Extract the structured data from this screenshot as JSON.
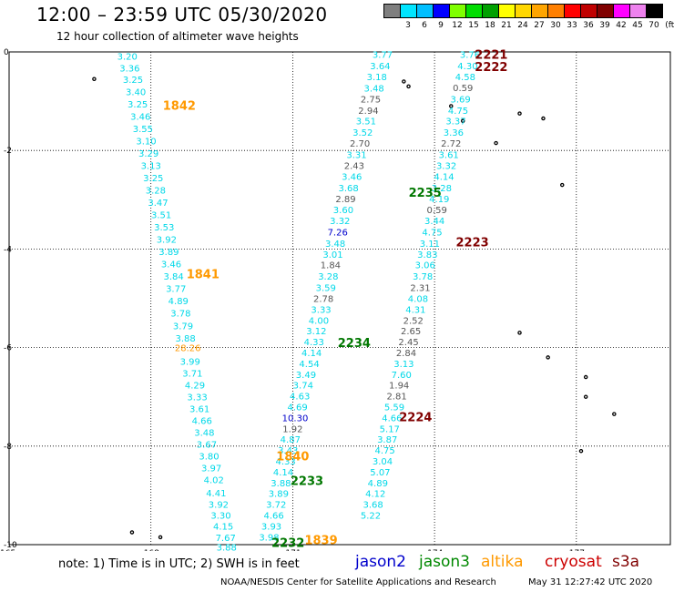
{
  "header": {
    "title": "12:00 – 23:59 UTC 05/30/2020",
    "subtitle": "12 hour collection of altimeter wave heights"
  },
  "color_scale": {
    "unit_label": "(ft)",
    "bins": [
      {
        "label": "",
        "color": "#7f7f7f"
      },
      {
        "label": "3",
        "color": "#00e5ff"
      },
      {
        "label": "6",
        "color": "#00bfff"
      },
      {
        "label": "9",
        "color": "#0000ff"
      },
      {
        "label": "12",
        "color": "#7fff00"
      },
      {
        "label": "15",
        "color": "#00dd00"
      },
      {
        "label": "18",
        "color": "#00a000"
      },
      {
        "label": "21",
        "color": "#ffff00"
      },
      {
        "label": "24",
        "color": "#ffd700"
      },
      {
        "label": "27",
        "color": "#ffa500"
      },
      {
        "label": "30",
        "color": "#ff7f00"
      },
      {
        "label": "33",
        "color": "#ff0000"
      },
      {
        "label": "36",
        "color": "#c00000"
      },
      {
        "label": "39",
        "color": "#800000"
      },
      {
        "label": "42",
        "color": "#ff00ff"
      },
      {
        "label": "45",
        "color": "#ee82ee"
      },
      {
        "label": "70",
        "color": "#000000"
      }
    ]
  },
  "axes": {
    "lat_ticks": [
      "0",
      "-2",
      "-4",
      "-6",
      "-8",
      "-10"
    ],
    "lon_ticks": [
      "165",
      "168",
      "171",
      "174",
      "177"
    ]
  },
  "chart_data": {
    "type": "scatter",
    "xlim": [
      165,
      178
    ],
    "ylim": [
      -10,
      0
    ],
    "grid": true,
    "colors": {
      "cyan": "#00d8e8",
      "gray": "#555555",
      "blue": "#0000cc",
      "orange": "#ff9900",
      "green": "#007700",
      "maroon": "#800000"
    },
    "pass_labels": [
      {
        "text": "1842",
        "lon": 168.6,
        "lat": -1.08,
        "color": "orange"
      },
      {
        "text": "1841",
        "lon": 169.1,
        "lat": -4.5,
        "color": "orange"
      },
      {
        "text": "1840",
        "lon": 171.0,
        "lat": -8.2,
        "color": "orange"
      },
      {
        "text": "1839",
        "lon": 171.6,
        "lat": -9.9,
        "color": "orange"
      },
      {
        "text": "2235",
        "lon": 173.8,
        "lat": -2.85,
        "color": "green"
      },
      {
        "text": "2234",
        "lon": 172.3,
        "lat": -5.9,
        "color": "green"
      },
      {
        "text": "2233",
        "lon": 171.3,
        "lat": -8.7,
        "color": "green"
      },
      {
        "text": "2232",
        "lon": 170.9,
        "lat": -9.95,
        "color": "green"
      },
      {
        "text": "2221",
        "lon": 175.2,
        "lat": -0.05,
        "color": "maroon"
      },
      {
        "text": "2222",
        "lon": 175.2,
        "lat": -0.3,
        "color": "maroon"
      },
      {
        "text": "2223",
        "lon": 174.8,
        "lat": -3.85,
        "color": "maroon"
      },
      {
        "text": "2224",
        "lon": 173.6,
        "lat": -7.4,
        "color": "maroon"
      }
    ],
    "tracks": [
      {
        "name": "1842 – 1839",
        "color": "cyan",
        "points": [
          [
            167.5,
            -0.08,
            "3.20"
          ],
          [
            167.55,
            -0.32,
            "3.36"
          ],
          [
            167.62,
            -0.55,
            "3.25"
          ],
          [
            167.68,
            -0.8,
            "3.40"
          ],
          [
            167.72,
            -1.05,
            "3.25"
          ],
          [
            167.78,
            -1.3,
            "3.46"
          ],
          [
            167.83,
            -1.55,
            "3.55"
          ],
          [
            167.9,
            -1.8,
            "3.10"
          ],
          [
            167.95,
            -2.05,
            "3.29"
          ],
          [
            168.0,
            -2.3,
            "3.13"
          ],
          [
            168.05,
            -2.55,
            "3.25"
          ],
          [
            168.1,
            -2.8,
            "3.28"
          ],
          [
            168.15,
            -3.05,
            "3.47"
          ],
          [
            168.22,
            -3.3,
            "3.51"
          ],
          [
            168.28,
            -3.55,
            "3.53"
          ],
          [
            168.33,
            -3.8,
            "3.92"
          ],
          [
            168.38,
            -4.05,
            "3.89"
          ],
          [
            168.43,
            -4.3,
            "3.46"
          ],
          [
            168.48,
            -4.55,
            "3.84"
          ],
          [
            168.53,
            -4.8,
            "3.77"
          ],
          [
            168.58,
            -5.05,
            "4.89"
          ],
          [
            168.63,
            -5.3,
            "3.78"
          ],
          [
            168.68,
            -5.55,
            "3.79"
          ],
          [
            168.73,
            -5.8,
            "3.88"
          ],
          [
            168.78,
            -6.0,
            "28.26",
            "orange"
          ],
          [
            168.83,
            -6.28,
            "3.99"
          ],
          [
            168.88,
            -6.52,
            "3.71"
          ],
          [
            168.93,
            -6.76,
            "4.29"
          ],
          [
            168.98,
            -7.0,
            "3.33"
          ],
          [
            169.03,
            -7.24,
            "3.61"
          ],
          [
            169.08,
            -7.48,
            "4.66"
          ],
          [
            169.13,
            -7.72,
            "3.48"
          ],
          [
            169.18,
            -7.96,
            "3.67"
          ],
          [
            169.23,
            -8.2,
            "3.80"
          ],
          [
            169.28,
            -8.44,
            "3.97"
          ],
          [
            169.33,
            -8.68,
            "4.02"
          ],
          [
            169.38,
            -8.95,
            "4.41"
          ],
          [
            169.43,
            -9.18,
            "3.92"
          ],
          [
            169.48,
            -9.4,
            "3.30"
          ],
          [
            169.53,
            -9.62,
            "4.15"
          ],
          [
            169.58,
            -9.85,
            "7.67"
          ],
          [
            169.6,
            -10.05,
            "3.88"
          ]
        ]
      },
      {
        "name": "2235 – 2232",
        "color": "cyan",
        "points": [
          [
            172.9,
            -0.05,
            "3.77"
          ],
          [
            172.85,
            -0.28,
            "3.64"
          ],
          [
            172.78,
            -0.5,
            "3.18"
          ],
          [
            172.72,
            -0.73,
            "3.48"
          ],
          [
            172.65,
            -0.95,
            "2.75",
            "gray"
          ],
          [
            172.6,
            -1.18,
            "2.94",
            "gray"
          ],
          [
            172.55,
            -1.4,
            "3.51"
          ],
          [
            172.48,
            -1.63,
            "3.52"
          ],
          [
            172.42,
            -1.85,
            "2.70",
            "gray"
          ],
          [
            172.35,
            -2.08,
            "3.31"
          ],
          [
            172.3,
            -2.3,
            "2.43",
            "gray"
          ],
          [
            172.25,
            -2.52,
            "3.46"
          ],
          [
            172.18,
            -2.75,
            "3.68"
          ],
          [
            172.12,
            -2.98,
            "2.89",
            "gray"
          ],
          [
            172.07,
            -3.2,
            "3.60"
          ],
          [
            172.0,
            -3.42,
            "3.32"
          ],
          [
            171.95,
            -3.65,
            "7.26",
            "blue"
          ],
          [
            171.9,
            -3.88,
            "3.48"
          ],
          [
            171.85,
            -4.1,
            "3.01"
          ],
          [
            171.8,
            -4.32,
            "1.84",
            "gray"
          ],
          [
            171.75,
            -4.55,
            "3.28"
          ],
          [
            171.7,
            -4.78,
            "3.59"
          ],
          [
            171.65,
            -5.0,
            "2.78",
            "gray"
          ],
          [
            171.6,
            -5.22,
            "3.33"
          ],
          [
            171.55,
            -5.44,
            "4.00"
          ],
          [
            171.5,
            -5.66,
            "3.12"
          ],
          [
            171.45,
            -5.88,
            "4.33"
          ],
          [
            171.4,
            -6.1,
            "4.14"
          ],
          [
            171.35,
            -6.32,
            "4.54"
          ],
          [
            171.28,
            -6.54,
            "3.49"
          ],
          [
            171.22,
            -6.76,
            "3.74"
          ],
          [
            171.15,
            -6.98,
            "4.63"
          ],
          [
            171.1,
            -7.2,
            "4.69"
          ],
          [
            171.05,
            -7.42,
            "10.30",
            "blue"
          ],
          [
            171.0,
            -7.64,
            "1.92",
            "gray"
          ],
          [
            170.95,
            -7.86,
            "4.87"
          ],
          [
            170.9,
            -8.08,
            "3.43"
          ],
          [
            170.85,
            -8.3,
            "4.33"
          ],
          [
            170.8,
            -8.52,
            "4.14"
          ],
          [
            170.75,
            -8.74,
            "3.88"
          ],
          [
            170.7,
            -8.96,
            "3.89"
          ],
          [
            170.65,
            -9.18,
            "3.72"
          ],
          [
            170.6,
            -9.4,
            "4.66"
          ],
          [
            170.55,
            -9.62,
            "3.93"
          ],
          [
            170.5,
            -9.84,
            "3.98"
          ]
        ]
      },
      {
        "name": "2221 – 2224",
        "color": "cyan",
        "points": [
          [
            174.75,
            -0.05,
            "3.76"
          ],
          [
            174.7,
            -0.28,
            "4.30"
          ],
          [
            174.65,
            -0.5,
            "4.58"
          ],
          [
            174.6,
            -0.72,
            "0.59",
            "gray"
          ],
          [
            174.55,
            -0.95,
            "3.69"
          ],
          [
            174.5,
            -1.18,
            "4.75"
          ],
          [
            174.45,
            -1.4,
            "3.37"
          ],
          [
            174.4,
            -1.63,
            "3.36"
          ],
          [
            174.35,
            -1.85,
            "2.72",
            "gray"
          ],
          [
            174.3,
            -2.08,
            "3.61"
          ],
          [
            174.25,
            -2.3,
            "3.32"
          ],
          [
            174.2,
            -2.52,
            "4.14"
          ],
          [
            174.15,
            -2.75,
            "3.28"
          ],
          [
            174.1,
            -2.98,
            "4.19"
          ],
          [
            174.05,
            -3.2,
            "0.59",
            "gray"
          ],
          [
            174.0,
            -3.42,
            "3.44"
          ],
          [
            173.95,
            -3.65,
            "4.75"
          ],
          [
            173.9,
            -3.88,
            "3.11"
          ],
          [
            173.85,
            -4.1,
            "3.83"
          ],
          [
            173.8,
            -4.32,
            "3.06"
          ],
          [
            173.75,
            -4.55,
            "3.78"
          ],
          [
            173.7,
            -4.78,
            "2.31",
            "gray"
          ],
          [
            173.65,
            -5.0,
            "4.08"
          ],
          [
            173.6,
            -5.22,
            "4.31"
          ],
          [
            173.55,
            -5.44,
            "2.52",
            "gray"
          ],
          [
            173.5,
            -5.66,
            "2.65",
            "gray"
          ],
          [
            173.45,
            -5.88,
            "2.45",
            "gray"
          ],
          [
            173.4,
            -6.1,
            "2.84",
            "gray"
          ],
          [
            173.35,
            -6.32,
            "3.13"
          ],
          [
            173.3,
            -6.54,
            "7.60"
          ],
          [
            173.25,
            -6.76,
            "1.94",
            "gray"
          ],
          [
            173.2,
            -6.98,
            "2.81",
            "gray"
          ],
          [
            173.15,
            -7.2,
            "5.59"
          ],
          [
            173.1,
            -7.42,
            "4.66"
          ],
          [
            173.05,
            -7.64,
            "5.17"
          ],
          [
            173.0,
            -7.86,
            "3.87"
          ],
          [
            172.95,
            -8.08,
            "4.75"
          ],
          [
            172.9,
            -8.3,
            "3.04"
          ],
          [
            172.85,
            -8.52,
            "5.07"
          ],
          [
            172.8,
            -8.74,
            "4.89"
          ],
          [
            172.75,
            -8.96,
            "4.12"
          ],
          [
            172.7,
            -9.18,
            "3.68"
          ],
          [
            172.65,
            -9.4,
            "5.22"
          ]
        ]
      }
    ],
    "islands": [
      [
        166.8,
        -0.55
      ],
      [
        173.35,
        -0.6
      ],
      [
        173.45,
        -0.7
      ],
      [
        174.35,
        -1.1
      ],
      [
        174.6,
        -1.4
      ],
      [
        175.8,
        -1.25
      ],
      [
        176.3,
        -1.35
      ],
      [
        175.3,
        -1.85
      ],
      [
        176.7,
        -2.7
      ],
      [
        175.8,
        -5.7
      ],
      [
        176.4,
        -6.2
      ],
      [
        177.2,
        -6.6
      ],
      [
        177.8,
        -7.35
      ],
      [
        177.1,
        -8.1
      ],
      [
        177.2,
        -7.0
      ],
      [
        167.6,
        -9.75
      ],
      [
        168.2,
        -9.85
      ]
    ]
  },
  "footer": {
    "note": "note: 1) Time is in UTC; 2) SWH is in feet",
    "missions": [
      {
        "label": "jason2",
        "color": "#0000cc"
      },
      {
        "label": "jason3",
        "color": "#008800"
      },
      {
        "label": "altika",
        "color": "#ff9900"
      },
      {
        "label": "cryosat",
        "color": "#cc0000"
      },
      {
        "label": "s3a",
        "color": "#800000"
      }
    ],
    "credit": "NOAA/NESDIS Center for Satellite Applications and Research",
    "timestamp": "May 31 12:27:42 UTC 2020"
  }
}
